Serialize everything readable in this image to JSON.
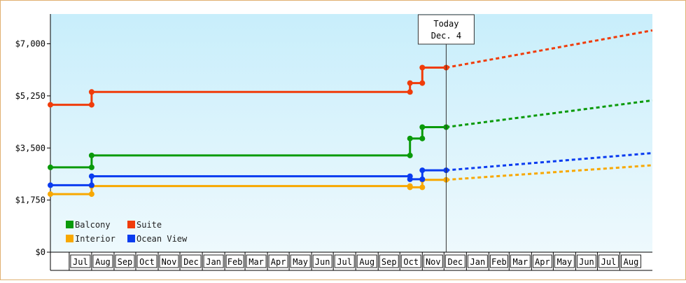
{
  "chart_data": {
    "type": "line",
    "title": "",
    "xlabel": "",
    "ylabel": "",
    "ylim": [
      0,
      8000
    ],
    "y_ticks": [
      {
        "value": 0,
        "label": "$0"
      },
      {
        "value": 1750,
        "label": "$1,750"
      },
      {
        "value": 3500,
        "label": "$3,500"
      },
      {
        "value": 5250,
        "label": "$5,250"
      },
      {
        "value": 7000,
        "label": "$7,000"
      }
    ],
    "x_months": [
      {
        "label": "Jul",
        "start": "2021-07-01",
        "end": "2021-08-01"
      },
      {
        "label": "Aug",
        "start": "2021-08-01",
        "end": "2021-09-01"
      },
      {
        "label": "Sep",
        "start": "2021-09-01",
        "end": "2021-10-01"
      },
      {
        "label": "Oct",
        "start": "2021-10-01",
        "end": "2021-11-01"
      },
      {
        "label": "Nov",
        "start": "2021-11-01",
        "end": "2021-12-01"
      },
      {
        "label": "Dec",
        "start": "2021-12-01",
        "end": "2022-01-01"
      },
      {
        "label": "Jan",
        "start": "2022-01-01",
        "end": "2022-02-01"
      },
      {
        "label": "Feb",
        "start": "2022-02-01",
        "end": "2022-03-01"
      },
      {
        "label": "Mar",
        "start": "2022-03-01",
        "end": "2022-04-01"
      },
      {
        "label": "Apr",
        "start": "2022-04-01",
        "end": "2022-05-01"
      },
      {
        "label": "May",
        "start": "2022-05-01",
        "end": "2022-06-01"
      },
      {
        "label": "Jun",
        "start": "2022-06-01",
        "end": "2022-07-01"
      },
      {
        "label": "Jul",
        "start": "2022-07-01",
        "end": "2022-08-01"
      },
      {
        "label": "Aug",
        "start": "2022-08-01",
        "end": "2022-09-01"
      },
      {
        "label": "Sep",
        "start": "2022-09-01",
        "end": "2022-10-01"
      },
      {
        "label": "Oct",
        "start": "2022-10-01",
        "end": "2022-11-01"
      },
      {
        "label": "Nov",
        "start": "2022-11-01",
        "end": "2022-12-01"
      },
      {
        "label": "Dec",
        "start": "2022-12-01",
        "end": "2023-01-01"
      },
      {
        "label": "Jan",
        "start": "2023-01-01",
        "end": "2023-02-01"
      },
      {
        "label": "Feb",
        "start": "2023-02-01",
        "end": "2023-03-01"
      },
      {
        "label": "Mar",
        "start": "2023-03-01",
        "end": "2023-04-01"
      },
      {
        "label": "Apr",
        "start": "2023-04-01",
        "end": "2023-05-01"
      },
      {
        "label": "May",
        "start": "2023-05-01",
        "end": "2023-06-01"
      },
      {
        "label": "Jun",
        "start": "2023-06-01",
        "end": "2023-07-01"
      },
      {
        "label": "Jul",
        "start": "2023-07-01",
        "end": "2023-08-01"
      },
      {
        "label": "Aug",
        "start": "2023-08-01",
        "end": "2023-09-01"
      }
    ],
    "xlim": [
      "2021-06-05",
      "2023-09-15"
    ],
    "today": {
      "line1": "Today",
      "line2": "Dec. 4",
      "date": "2022-12-04"
    },
    "grid": false,
    "legend_position": "bottom-left",
    "background": [
      "#c8eefb",
      "#eef9fd"
    ],
    "series": [
      {
        "name": "Balcony",
        "color": "#0a9a0a",
        "points": [
          [
            "2021-06-05",
            2850
          ],
          [
            "2021-08-01",
            2850
          ],
          [
            "2021-08-01",
            3250
          ],
          [
            "2022-10-15",
            3250
          ],
          [
            "2022-10-15",
            3820
          ],
          [
            "2022-11-01",
            3820
          ],
          [
            "2022-11-01",
            4200
          ],
          [
            "2022-12-04",
            4200
          ]
        ],
        "markers": [
          [
            "2021-06-05",
            2850
          ],
          [
            "2021-08-01",
            2850
          ],
          [
            "2021-08-01",
            3250
          ],
          [
            "2022-10-15",
            3250
          ],
          [
            "2022-10-15",
            3820
          ],
          [
            "2022-11-01",
            3820
          ],
          [
            "2022-11-01",
            4200
          ],
          [
            "2022-12-04",
            4200
          ]
        ],
        "forecast": [
          [
            "2022-12-04",
            4200
          ],
          [
            "2023-09-15",
            5100
          ]
        ]
      },
      {
        "name": "Suite",
        "color": "#f03c0a",
        "points": [
          [
            "2021-06-05",
            4950
          ],
          [
            "2021-08-01",
            4950
          ],
          [
            "2021-08-01",
            5380
          ],
          [
            "2022-10-15",
            5380
          ],
          [
            "2022-10-15",
            5680
          ],
          [
            "2022-11-01",
            5680
          ],
          [
            "2022-11-01",
            6200
          ],
          [
            "2022-12-04",
            6200
          ]
        ],
        "markers": [
          [
            "2021-06-05",
            4950
          ],
          [
            "2021-08-01",
            4950
          ],
          [
            "2021-08-01",
            5380
          ],
          [
            "2022-10-15",
            5380
          ],
          [
            "2022-10-15",
            5680
          ],
          [
            "2022-11-01",
            5680
          ],
          [
            "2022-11-01",
            6200
          ],
          [
            "2022-12-04",
            6200
          ]
        ],
        "forecast": [
          [
            "2022-12-04",
            6200
          ],
          [
            "2023-09-15",
            7450
          ]
        ]
      },
      {
        "name": "Interior",
        "color": "#f8a800",
        "points": [
          [
            "2021-06-05",
            1950
          ],
          [
            "2021-08-01",
            1950
          ],
          [
            "2021-08-01",
            2220
          ],
          [
            "2022-10-15",
            2220
          ],
          [
            "2022-10-15",
            2180
          ],
          [
            "2022-11-01",
            2180
          ],
          [
            "2022-11-01",
            2430
          ],
          [
            "2022-12-04",
            2430
          ]
        ],
        "markers": [
          [
            "2021-06-05",
            1950
          ],
          [
            "2021-08-01",
            1950
          ],
          [
            "2021-08-01",
            2220
          ],
          [
            "2022-10-15",
            2220
          ],
          [
            "2022-10-15",
            2180
          ],
          [
            "2022-11-01",
            2180
          ],
          [
            "2022-11-01",
            2430
          ],
          [
            "2022-12-04",
            2430
          ]
        ],
        "forecast": [
          [
            "2022-12-04",
            2430
          ],
          [
            "2023-09-15",
            2920
          ]
        ]
      },
      {
        "name": "Ocean View",
        "color": "#0a3cf0",
        "points": [
          [
            "2021-06-05",
            2250
          ],
          [
            "2021-08-01",
            2250
          ],
          [
            "2021-08-01",
            2550
          ],
          [
            "2022-10-15",
            2550
          ],
          [
            "2022-10-15",
            2450
          ],
          [
            "2022-11-01",
            2450
          ],
          [
            "2022-11-01",
            2750
          ],
          [
            "2022-12-04",
            2750
          ]
        ],
        "markers": [
          [
            "2021-06-05",
            2250
          ],
          [
            "2021-08-01",
            2250
          ],
          [
            "2021-08-01",
            2550
          ],
          [
            "2022-10-15",
            2550
          ],
          [
            "2022-10-15",
            2450
          ],
          [
            "2022-11-01",
            2450
          ],
          [
            "2022-11-01",
            2750
          ],
          [
            "2022-12-04",
            2750
          ]
        ],
        "forecast": [
          [
            "2022-12-04",
            2750
          ],
          [
            "2023-09-15",
            3330
          ]
        ]
      }
    ]
  }
}
